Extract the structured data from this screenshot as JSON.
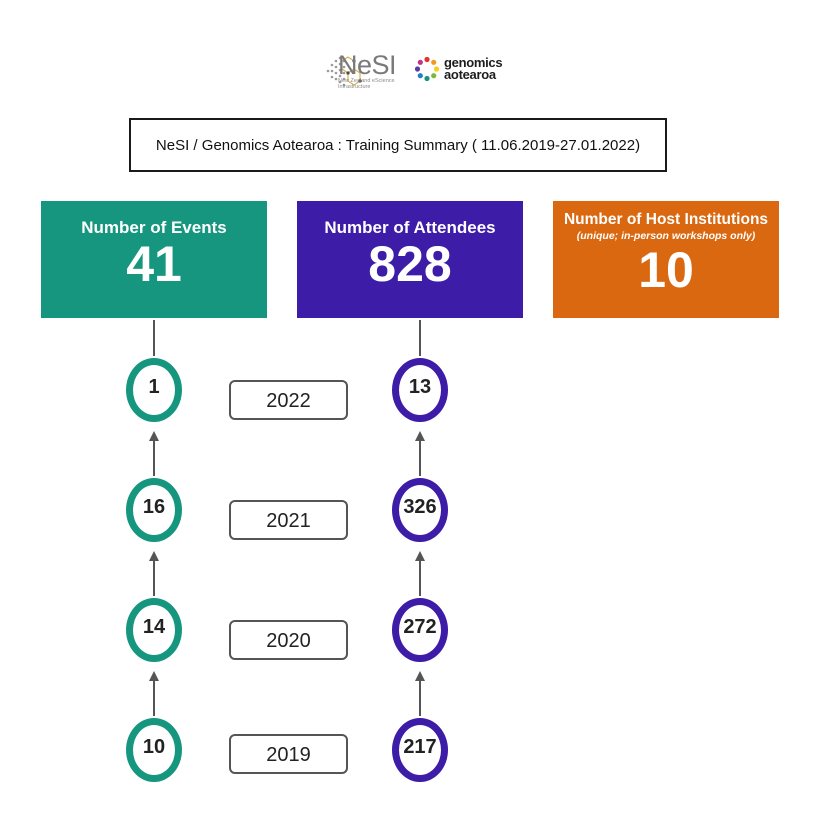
{
  "logos": {
    "nesi_name": "NeSI",
    "nesi_tagline": "New Zealand eScience Infrastructure",
    "genomics_line1": "genomics",
    "genomics_line2": "aotearoa"
  },
  "title": "NeSI / Genomics Aotearoa :  Training Summary ( 11.06.2019-27.01.2022)",
  "cards": {
    "events": {
      "label": "Number of Events",
      "value": "41",
      "color": "#17967f"
    },
    "attendees": {
      "label": "Number of Attendees",
      "value": "828",
      "color": "#3d1ca8"
    },
    "hosts": {
      "label": "Number of Host Institutions",
      "note": "(unique; in-person workshops only)",
      "value": "10",
      "color": "#da6810"
    }
  },
  "timeline": [
    {
      "year": "2022",
      "events": "1",
      "attendees": "13"
    },
    {
      "year": "2021",
      "events": "16",
      "attendees": "326"
    },
    {
      "year": "2020",
      "events": "14",
      "attendees": "272"
    },
    {
      "year": "2019",
      "events": "10",
      "attendees": "217"
    }
  ]
}
